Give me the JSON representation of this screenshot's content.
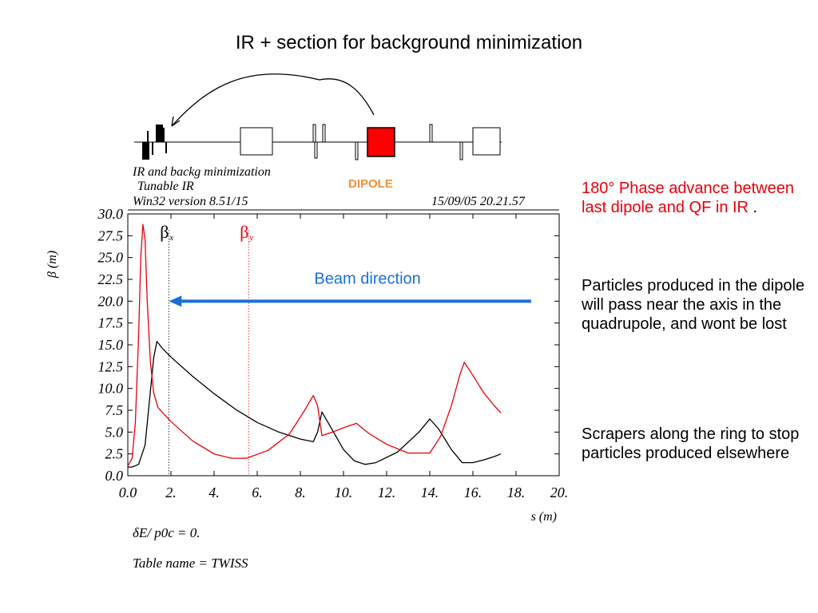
{
  "slide_title": "IR + section for background minimization",
  "lattice": {
    "name": "IR and backg minimization",
    "subtitle": "Tunable IR",
    "version": "Win32 version 8.51/15",
    "datetime": "15/09/05  20.21.57",
    "dipole_label": "DIPOLE",
    "dipole_color": "#ff0000"
  },
  "side_text": {
    "phase_advance": "180° Phase advance between last dipole and QF in IR",
    "phase_advance_tail": " .",
    "particles": "Particles produced in the dipole will pass near the axis in the quadrupole, and wont be lost",
    "scrapers": "Scrapers along the ring to stop particles produced elsewhere"
  },
  "footer": {
    "delta": "δE/ p0c  =  0.",
    "table_name": "Table name = TWISS"
  },
  "chart_data": {
    "type": "line",
    "xlabel": "s (m)",
    "ylabel": "β (m)",
    "xlim": [
      0,
      20
    ],
    "ylim": [
      0,
      30
    ],
    "x_ticks": [
      "0.0",
      "2.",
      "4.",
      "6.",
      "8.",
      "10.",
      "12.",
      "14.",
      "16.",
      "18.",
      "20."
    ],
    "y_ticks": [
      "0.0",
      "2.5",
      "5.0",
      "7.5",
      "10.0",
      "12.5",
      "15.0",
      "17.5",
      "20.0",
      "22.5",
      "25.0",
      "27.5",
      "30.0"
    ],
    "grid": false,
    "annotations": {
      "beam_direction": "Beam direction",
      "beta_x_marker": {
        "greek": "β",
        "sub": "x",
        "s": 1.9
      },
      "beta_y_marker": {
        "greek": "β",
        "sub": "y",
        "s": 5.6
      },
      "beam_arrow": {
        "from_s": 18.7,
        "to_s": 1.9,
        "beta": 20.0
      }
    },
    "series": [
      {
        "name": "βx",
        "color": "#000000",
        "points": [
          [
            0.0,
            1.0
          ],
          [
            0.2,
            1.0
          ],
          [
            0.5,
            1.3
          ],
          [
            0.8,
            3.5
          ],
          [
            1.0,
            8.5
          ],
          [
            1.2,
            13.5
          ],
          [
            1.35,
            15.4
          ],
          [
            1.6,
            14.6
          ],
          [
            2.0,
            13.6
          ],
          [
            3.0,
            11.4
          ],
          [
            4.0,
            9.4
          ],
          [
            5.0,
            7.6
          ],
          [
            6.0,
            6.1
          ],
          [
            7.0,
            5.0
          ],
          [
            8.0,
            4.2
          ],
          [
            8.6,
            3.9
          ],
          [
            8.8,
            5.0
          ],
          [
            9.0,
            7.3
          ],
          [
            9.4,
            5.6
          ],
          [
            10.0,
            3.0
          ],
          [
            10.5,
            1.7
          ],
          [
            11.0,
            1.3
          ],
          [
            11.5,
            1.5
          ],
          [
            12.5,
            2.7
          ],
          [
            13.5,
            5.0
          ],
          [
            14.0,
            6.5
          ],
          [
            14.4,
            5.4
          ],
          [
            15.0,
            3.0
          ],
          [
            15.5,
            1.5
          ],
          [
            16.0,
            1.5
          ],
          [
            16.5,
            1.8
          ],
          [
            17.0,
            2.2
          ],
          [
            17.3,
            2.5
          ]
        ]
      },
      {
        "name": "βy",
        "color": "#e8000b",
        "points": [
          [
            0.0,
            1.1
          ],
          [
            0.2,
            2.0
          ],
          [
            0.35,
            6.0
          ],
          [
            0.5,
            16.0
          ],
          [
            0.6,
            25.0
          ],
          [
            0.7,
            28.8
          ],
          [
            0.8,
            27.0
          ],
          [
            0.9,
            20.0
          ],
          [
            1.05,
            13.0
          ],
          [
            1.2,
            9.5
          ],
          [
            1.4,
            7.8
          ],
          [
            2.0,
            6.2
          ],
          [
            3.0,
            4.0
          ],
          [
            4.0,
            2.5
          ],
          [
            4.8,
            2.0
          ],
          [
            5.5,
            2.0
          ],
          [
            6.5,
            2.9
          ],
          [
            7.5,
            4.8
          ],
          [
            8.2,
            7.5
          ],
          [
            8.6,
            9.2
          ],
          [
            8.8,
            8.0
          ],
          [
            9.0,
            4.6
          ],
          [
            9.5,
            5.0
          ],
          [
            10.0,
            5.5
          ],
          [
            10.6,
            6.0
          ],
          [
            11.2,
            4.8
          ],
          [
            12.0,
            3.6
          ],
          [
            13.0,
            2.6
          ],
          [
            14.0,
            2.6
          ],
          [
            14.5,
            4.5
          ],
          [
            15.0,
            8.0
          ],
          [
            15.4,
            11.6
          ],
          [
            15.6,
            13.0
          ],
          [
            16.0,
            11.5
          ],
          [
            16.5,
            9.5
          ],
          [
            17.0,
            8.0
          ],
          [
            17.3,
            7.2
          ]
        ]
      }
    ]
  }
}
